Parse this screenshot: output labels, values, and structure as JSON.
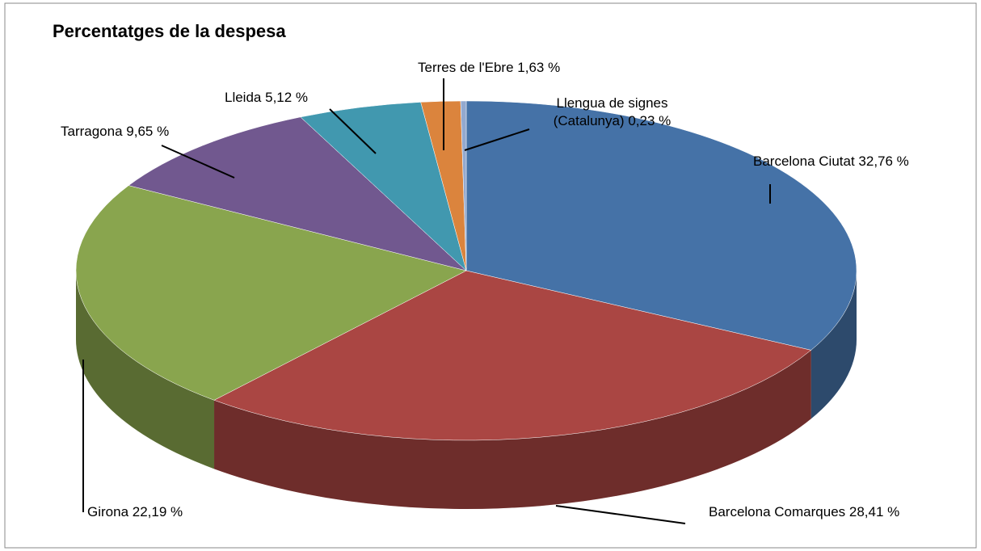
{
  "chart_data": {
    "type": "pie3d",
    "title": "Percentatges de la despesa",
    "categories": [
      "Barcelona Ciutat",
      "Barcelona Comarques",
      "Girona",
      "Tarragona",
      "Lleida",
      "Terres de l'Ebre",
      "Llengua de signes (Catalunya)"
    ],
    "values": [
      32.76,
      28.41,
      22.19,
      9.65,
      5.12,
      1.63,
      0.23
    ],
    "value_labels": [
      "32,76 %",
      "28,41 %",
      "22,19 %",
      "9,65 %",
      "5,12 %",
      "1,63 %",
      "0,23 %"
    ],
    "colors": [
      "#4572a7",
      "#aa4643",
      "#89a54e",
      "#71588f",
      "#4198af",
      "#db843d",
      "#93a9cf"
    ]
  }
}
